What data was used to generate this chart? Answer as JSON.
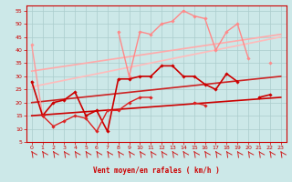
{
  "background_color": "#cce8e8",
  "grid_color": "#aacccc",
  "xlim": [
    -0.5,
    23.5
  ],
  "ylim": [
    5,
    57
  ],
  "yticks": [
    5,
    10,
    15,
    20,
    25,
    30,
    35,
    40,
    45,
    50,
    55
  ],
  "xticks": [
    0,
    1,
    2,
    3,
    4,
    5,
    6,
    7,
    8,
    9,
    10,
    11,
    12,
    13,
    14,
    15,
    16,
    17,
    18,
    19,
    20,
    21,
    22,
    23
  ],
  "xlabel": "Vent moyen/en rafales ( km/h )",
  "series": [
    {
      "x": [
        0,
        1,
        2,
        3,
        4,
        5,
        6,
        7,
        8,
        9,
        10,
        11,
        12,
        13,
        14,
        15,
        16,
        17,
        18,
        19,
        20,
        21,
        22,
        23
      ],
      "y": [
        42,
        15,
        null,
        null,
        null,
        null,
        null,
        null,
        null,
        null,
        null,
        null,
        null,
        null,
        null,
        null,
        null,
        null,
        null,
        null,
        null,
        null,
        null,
        null
      ],
      "color": "#ff9999",
      "linewidth": 1.0,
      "marker": "D",
      "markersize": 1.8,
      "zorder": 3
    },
    {
      "x": [
        0,
        1,
        2,
        3,
        4,
        5,
        6,
        7,
        8,
        9,
        10,
        11,
        12,
        13,
        14,
        15,
        16,
        17,
        18,
        19,
        20,
        21,
        22,
        23
      ],
      "y": [
        null,
        null,
        null,
        null,
        null,
        null,
        null,
        null,
        47,
        30,
        47,
        46,
        50,
        51,
        55,
        53,
        52,
        40,
        47,
        50,
        37,
        null,
        35,
        null
      ],
      "color": "#ff8888",
      "linewidth": 1.0,
      "marker": "D",
      "markersize": 1.8,
      "zorder": 3
    },
    {
      "x": [
        0,
        23
      ],
      "y": [
        32,
        46
      ],
      "color": "#ffaaaa",
      "linewidth": 1.2,
      "marker": null,
      "markersize": 0,
      "zorder": 2
    },
    {
      "x": [
        0,
        23
      ],
      "y": [
        26,
        45
      ],
      "color": "#ffbbbb",
      "linewidth": 1.2,
      "marker": null,
      "markersize": 0,
      "zorder": 2
    },
    {
      "x": [
        0,
        1,
        2,
        3,
        4,
        5,
        6,
        7,
        8,
        9,
        10,
        11,
        12,
        13,
        14,
        15,
        16,
        17,
        18,
        19,
        20,
        21,
        22,
        23
      ],
      "y": [
        28,
        15,
        20,
        21,
        24,
        15,
        17,
        9,
        29,
        29,
        30,
        30,
        34,
        34,
        30,
        30,
        27,
        25,
        31,
        28,
        null,
        22,
        23,
        null
      ],
      "color": "#cc0000",
      "linewidth": 1.2,
      "marker": "D",
      "markersize": 1.8,
      "zorder": 4
    },
    {
      "x": [
        0,
        1,
        2,
        3,
        4,
        5,
        6,
        7,
        8,
        9,
        10,
        11,
        12,
        13,
        14,
        15,
        16,
        17,
        18,
        19,
        20,
        21,
        22,
        23
      ],
      "y": [
        null,
        15,
        11,
        13,
        15,
        14,
        9,
        17,
        17,
        20,
        22,
        22,
        null,
        null,
        null,
        20,
        19,
        null,
        null,
        null,
        null,
        null,
        null,
        null
      ],
      "color": "#dd2222",
      "linewidth": 1.0,
      "marker": "D",
      "markersize": 1.8,
      "zorder": 4
    },
    {
      "x": [
        0,
        23
      ],
      "y": [
        15,
        22
      ],
      "color": "#cc0000",
      "linewidth": 1.2,
      "marker": null,
      "markersize": 0,
      "zorder": 2
    },
    {
      "x": [
        0,
        23
      ],
      "y": [
        20,
        30
      ],
      "color": "#cc2222",
      "linewidth": 1.2,
      "marker": null,
      "markersize": 0,
      "zorder": 2
    }
  ],
  "wind_arrows_color": "#cc2222"
}
